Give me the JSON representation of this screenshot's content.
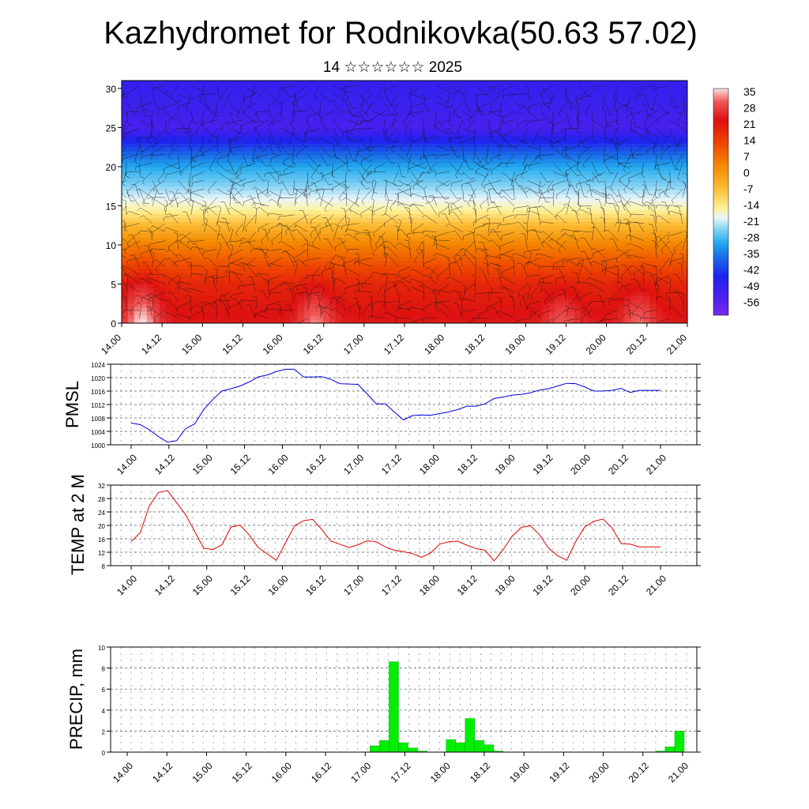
{
  "header": {
    "title": "Kazhydromet for Rodnikovka(50.63 57.02)",
    "subtitle": "14 ☆☆☆☆☆☆ 2025"
  },
  "x_ticks": [
    "14.00",
    "14.12",
    "15.00",
    "15.12",
    "16.00",
    "16.12",
    "17.00",
    "17.12",
    "18.00",
    "18.12",
    "19.00",
    "19.12",
    "20.00",
    "20.12",
    "21.00"
  ],
  "colors": {
    "pmsl_line": "#0000dd",
    "temp_line": "#e00000",
    "precip_bar": "#00ee00",
    "precip_bar_edge": "#009900"
  },
  "chart_data": [
    {
      "type": "heatmap",
      "name": "vertical temperature section with wind barbs",
      "yticks": [
        0,
        5,
        10,
        15,
        20,
        25,
        30
      ],
      "ylim": [
        0,
        31
      ],
      "colorbar_labels": [
        "35",
        "28",
        "21",
        "14",
        "7",
        "0",
        "-7",
        "-14",
        "-21",
        "-28",
        "-35",
        "-42",
        "-49",
        "-56"
      ],
      "colorbar_range": [
        -60,
        37
      ],
      "levels_km": [
        0,
        5,
        10,
        15,
        20,
        25,
        30
      ],
      "profile_degC": [
        25,
        20,
        5,
        -14,
        -30,
        -54,
        -50
      ],
      "warm_cores": [
        {
          "day": 14.25,
          "height_km": 3.0,
          "amplitude": 12
        },
        {
          "day": 16.4,
          "height_km": 2.0,
          "amplitude": 9
        },
        {
          "day": 19.45,
          "height_km": 1.5,
          "amplitude": 7
        },
        {
          "day": 20.4,
          "height_km": 2.0,
          "amplitude": 8
        }
      ]
    },
    {
      "type": "line",
      "ylabel": "PMSL",
      "ylim": [
        1000,
        1024
      ],
      "yticks": [
        1000,
        1004,
        1008,
        1012,
        1016,
        1020,
        1024
      ],
      "x": [
        14.0,
        14.12,
        14.24,
        14.36,
        14.48,
        14.6,
        14.72,
        14.84,
        14.96,
        15.08,
        15.2,
        15.32,
        15.44,
        15.56,
        15.68,
        15.8,
        15.92,
        16.04,
        16.16,
        16.28,
        16.4,
        16.52,
        16.64,
        16.76,
        16.88,
        17.0,
        17.12,
        17.24,
        17.36,
        17.48,
        17.6,
        17.72,
        17.84,
        17.96,
        18.08,
        18.2,
        18.32,
        18.44,
        18.56,
        18.68,
        18.8,
        18.92,
        19.04,
        19.16,
        19.28,
        19.4,
        19.52,
        19.64,
        19.76,
        19.88,
        20.0,
        20.12,
        20.24,
        20.36,
        20.48,
        20.6,
        20.72,
        20.84,
        21.0
      ],
      "values": [
        1006.5,
        1006,
        1004.5,
        1002.5,
        1000.8,
        1001.2,
        1004.8,
        1006.2,
        1010.5,
        1013.5,
        1016,
        1016.7,
        1017.5,
        1018.7,
        1020.2,
        1020.8,
        1021.8,
        1022.5,
        1022.5,
        1020.2,
        1020.2,
        1020.3,
        1019.5,
        1018.2,
        1018.1,
        1018,
        1015.2,
        1012.2,
        1012.2,
        1009.8,
        1007.4,
        1008.7,
        1008.9,
        1008.8,
        1009.3,
        1009.8,
        1010.5,
        1011.5,
        1011.5,
        1012.2,
        1013.8,
        1014.2,
        1014.8,
        1015.0,
        1015.5,
        1016.3,
        1016.7,
        1017.5,
        1018.3,
        1018.2,
        1017.2,
        1016,
        1016,
        1016.2,
        1016.8,
        1015.6,
        1016.2,
        1016.2,
        1016.2
      ]
    },
    {
      "type": "line",
      "ylabel": "TEMP at 2 M",
      "ylim": [
        8,
        32
      ],
      "yticks": [
        8,
        12,
        16,
        20,
        24,
        28,
        32
      ],
      "x": [
        14.0,
        14.12,
        14.24,
        14.36,
        14.48,
        14.6,
        14.72,
        14.84,
        14.96,
        15.08,
        15.2,
        15.32,
        15.44,
        15.56,
        15.68,
        15.8,
        15.92,
        16.04,
        16.16,
        16.28,
        16.4,
        16.52,
        16.64,
        16.76,
        16.88,
        17.0,
        17.12,
        17.24,
        17.36,
        17.48,
        17.6,
        17.72,
        17.84,
        17.96,
        18.08,
        18.2,
        18.32,
        18.44,
        18.56,
        18.68,
        18.8,
        18.92,
        19.04,
        19.16,
        19.28,
        19.4,
        19.52,
        19.64,
        19.76,
        19.88,
        20.0,
        20.12,
        20.24,
        20.36,
        20.48,
        20.6,
        20.72,
        20.84,
        21.0
      ],
      "values": [
        15.2,
        17.8,
        25.8,
        29.8,
        30.4,
        26.8,
        23.2,
        18.2,
        13.2,
        12.8,
        14.2,
        19.5,
        20.1,
        17.2,
        13.4,
        11.5,
        9.6,
        14.8,
        19.8,
        21.4,
        21.8,
        18.8,
        15.3,
        14.4,
        13.4,
        14.2,
        15.4,
        15.1,
        13.6,
        12.6,
        12.2,
        11.6,
        10.5,
        11.8,
        14.4,
        15.1,
        15.3,
        14.1,
        13.1,
        12.6,
        9.4,
        12.8,
        16.8,
        19.4,
        19.9,
        17.2,
        13.2,
        11.0,
        9.6,
        15.2,
        19.6,
        21.2,
        21.9,
        19.2,
        14.6,
        14.4,
        13.6,
        13.6,
        13.6
      ]
    },
    {
      "type": "bar",
      "ylabel": "PRECIP, mm",
      "ylim": [
        0,
        10
      ],
      "yticks": [
        0,
        2,
        4,
        6,
        8,
        10
      ],
      "bar_width_days": 0.12,
      "x": [
        17.12,
        17.24,
        17.36,
        17.48,
        17.6,
        17.72,
        18.08,
        18.2,
        18.32,
        18.44,
        18.56,
        18.68,
        20.72,
        20.84,
        20.96
      ],
      "values": [
        0.6,
        1.1,
        8.6,
        0.9,
        0.4,
        0.1,
        1.2,
        0.9,
        3.2,
        1.1,
        0.7,
        0.1,
        0.1,
        0.5,
        2.0
      ]
    }
  ]
}
